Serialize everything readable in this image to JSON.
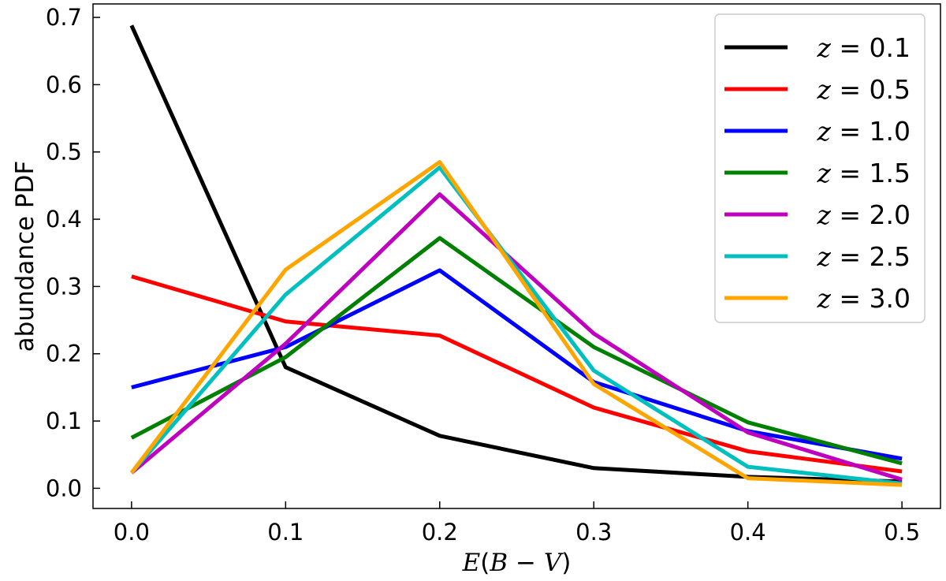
{
  "chart_data": {
    "type": "line",
    "title": "",
    "xlabel": "E(B − V)",
    "ylabel": "abundance PDF",
    "xlim": [
      -0.025,
      0.525
    ],
    "ylim": [
      -0.03,
      0.72
    ],
    "x_ticks": [
      "0.0",
      "0.1",
      "0.2",
      "0.3",
      "0.4",
      "0.5"
    ],
    "y_ticks": [
      "0.0",
      "0.1",
      "0.2",
      "0.3",
      "0.4",
      "0.5",
      "0.6",
      "0.7"
    ],
    "x": [
      0.0,
      0.1,
      0.2,
      0.3,
      0.4,
      0.5
    ],
    "legend_position": "top-right",
    "series": [
      {
        "name": "z = 0.1",
        "label_var": "z",
        "label_val": "0.1",
        "color": "#000000",
        "values": [
          0.688,
          0.18,
          0.078,
          0.03,
          0.017,
          0.01
        ]
      },
      {
        "name": "z = 0.5",
        "label_var": "z",
        "label_val": "0.5",
        "color": "#ff0000",
        "values": [
          0.315,
          0.248,
          0.227,
          0.12,
          0.055,
          0.025
        ]
      },
      {
        "name": "z = 1.0",
        "label_var": "z",
        "label_val": "1.0",
        "color": "#0000ff",
        "values": [
          0.15,
          0.21,
          0.324,
          0.158,
          0.085,
          0.044
        ]
      },
      {
        "name": "z = 1.5",
        "label_var": "z",
        "label_val": "1.5",
        "color": "#008000",
        "values": [
          0.075,
          0.195,
          0.372,
          0.21,
          0.098,
          0.037
        ]
      },
      {
        "name": "z = 2.0",
        "label_var": "z",
        "label_val": "2.0",
        "color": "#bf00bf",
        "values": [
          0.023,
          0.215,
          0.437,
          0.23,
          0.083,
          0.013
        ]
      },
      {
        "name": "z = 2.5",
        "label_var": "z",
        "label_val": "2.5",
        "color": "#00bfbf",
        "values": [
          0.023,
          0.288,
          0.477,
          0.175,
          0.032,
          0.007
        ]
      },
      {
        "name": "z = 3.0",
        "label_var": "z",
        "label_val": "3.0",
        "color": "#ffa500",
        "values": [
          0.023,
          0.325,
          0.485,
          0.155,
          0.015,
          0.005
        ]
      }
    ]
  }
}
